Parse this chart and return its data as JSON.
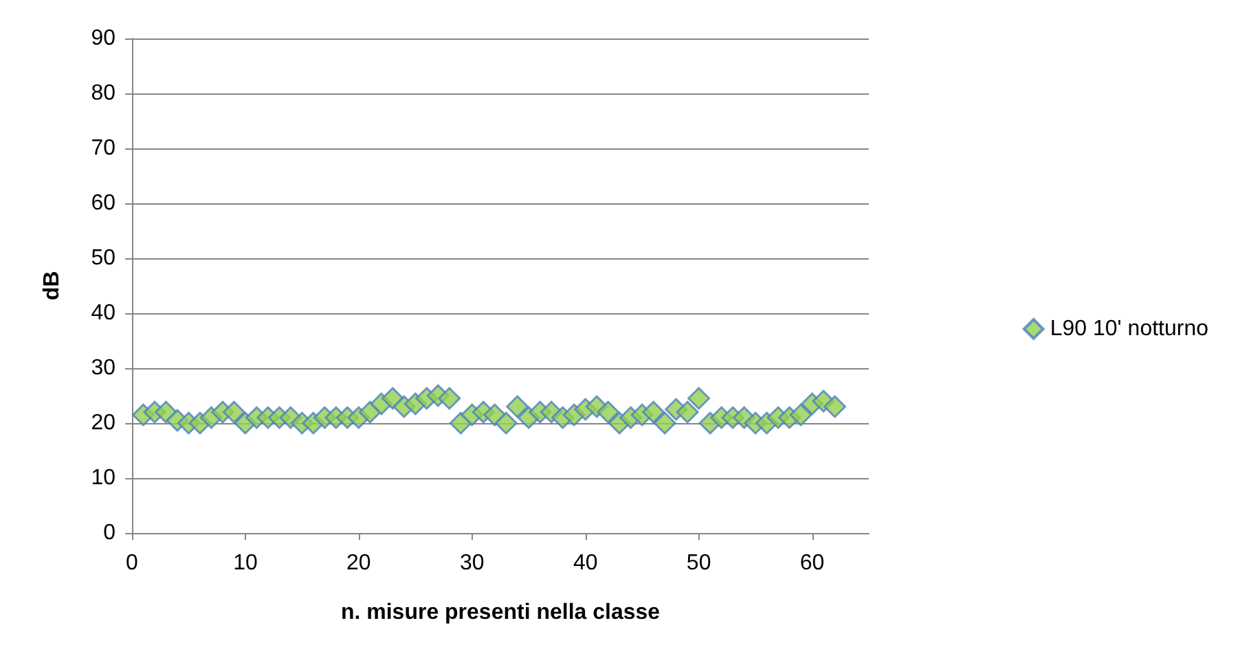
{
  "chart_data": {
    "type": "scatter",
    "xlabel": "n. misure presenti nella classe",
    "ylabel": "dB",
    "xlim": [
      0,
      65
    ],
    "xticks": [
      0,
      10,
      20,
      30,
      40,
      50,
      60
    ],
    "ylim": [
      0,
      90
    ],
    "yticks": [
      0,
      10,
      20,
      30,
      40,
      50,
      60,
      70,
      80,
      90
    ],
    "grid": "y",
    "legend": "right",
    "marker": "diamond",
    "x": [
      1,
      2,
      3,
      4,
      5,
      6,
      7,
      8,
      9,
      10,
      11,
      12,
      13,
      14,
      15,
      16,
      17,
      18,
      19,
      20,
      21,
      22,
      23,
      24,
      25,
      26,
      27,
      28,
      29,
      30,
      31,
      32,
      33,
      34,
      35,
      36,
      37,
      38,
      39,
      40,
      41,
      42,
      43,
      44,
      45,
      46,
      47,
      48,
      49,
      50,
      51,
      52,
      53,
      54,
      55,
      56,
      57,
      58,
      59,
      60,
      61,
      62
    ],
    "series": [
      {
        "name": "L90 10' notturno",
        "color": "#92d050",
        "values": [
          21.5,
          22,
          22,
          20.5,
          20,
          20,
          21,
          22,
          22,
          20,
          21,
          21,
          21,
          21,
          20,
          20,
          21,
          21,
          21,
          21,
          22,
          23.5,
          24.5,
          23,
          23.5,
          24.5,
          25,
          24.5,
          20,
          21.5,
          22,
          21.5,
          20,
          23,
          21,
          22,
          22,
          21,
          21.5,
          22.5,
          23,
          22,
          20,
          21,
          21.5,
          22,
          20,
          22.5,
          22,
          24.5,
          20,
          21,
          21,
          21,
          20,
          20,
          21,
          21,
          21.5,
          23.5,
          24,
          23
        ]
      }
    ]
  }
}
